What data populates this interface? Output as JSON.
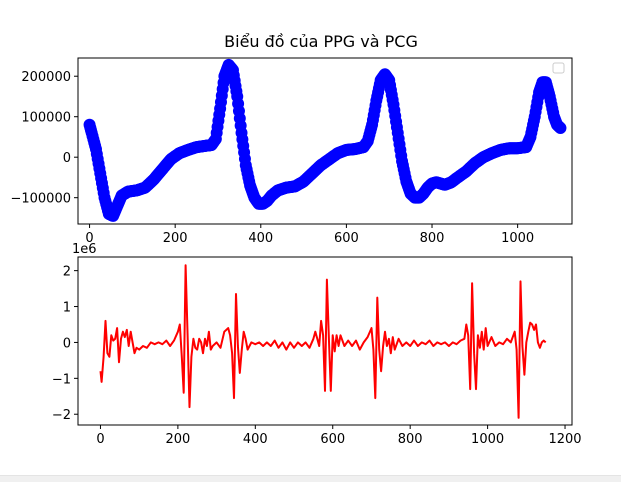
{
  "figure_title": "Biểu đồ của PPG và PCG",
  "chart_data": [
    {
      "type": "scatter",
      "title": "Biểu đồ của PPG và PCG",
      "color": "#0000ff",
      "xlim": [
        -27,
        1127
      ],
      "ylim": [
        -165000,
        245000
      ],
      "xticks": [
        0,
        200,
        400,
        600,
        800,
        1000
      ],
      "yticks": [
        -100000,
        0,
        100000,
        200000
      ],
      "legend": "top-right (empty)",
      "grid": false,
      "points": [
        [
          0,
          80000
        ],
        [
          5,
          60000
        ],
        [
          15,
          20000
        ],
        [
          25,
          -40000
        ],
        [
          35,
          -100000
        ],
        [
          45,
          -140000
        ],
        [
          55,
          -145000
        ],
        [
          65,
          -120000
        ],
        [
          75,
          -95000
        ],
        [
          90,
          -85000
        ],
        [
          110,
          -82000
        ],
        [
          130,
          -75000
        ],
        [
          150,
          -55000
        ],
        [
          170,
          -30000
        ],
        [
          190,
          -5000
        ],
        [
          210,
          10000
        ],
        [
          230,
          18000
        ],
        [
          250,
          25000
        ],
        [
          270,
          28000
        ],
        [
          285,
          30000
        ],
        [
          295,
          45000
        ],
        [
          305,
          120000
        ],
        [
          315,
          200000
        ],
        [
          325,
          228000
        ],
        [
          335,
          215000
        ],
        [
          345,
          150000
        ],
        [
          355,
          60000
        ],
        [
          365,
          -20000
        ],
        [
          375,
          -70000
        ],
        [
          385,
          -100000
        ],
        [
          395,
          -115000
        ],
        [
          405,
          -115000
        ],
        [
          415,
          -108000
        ],
        [
          425,
          -95000
        ],
        [
          440,
          -82000
        ],
        [
          460,
          -75000
        ],
        [
          480,
          -72000
        ],
        [
          500,
          -60000
        ],
        [
          520,
          -40000
        ],
        [
          540,
          -20000
        ],
        [
          560,
          -5000
        ],
        [
          580,
          10000
        ],
        [
          600,
          18000
        ],
        [
          620,
          20000
        ],
        [
          640,
          25000
        ],
        [
          650,
          40000
        ],
        [
          660,
          80000
        ],
        [
          670,
          140000
        ],
        [
          680,
          190000
        ],
        [
          690,
          205000
        ],
        [
          700,
          190000
        ],
        [
          710,
          130000
        ],
        [
          720,
          60000
        ],
        [
          730,
          -10000
        ],
        [
          740,
          -60000
        ],
        [
          750,
          -90000
        ],
        [
          760,
          -100000
        ],
        [
          770,
          -100000
        ],
        [
          780,
          -90000
        ],
        [
          790,
          -75000
        ],
        [
          800,
          -65000
        ],
        [
          810,
          -62000
        ],
        [
          820,
          -65000
        ],
        [
          830,
          -68000
        ],
        [
          845,
          -62000
        ],
        [
          860,
          -50000
        ],
        [
          880,
          -35000
        ],
        [
          900,
          -15000
        ],
        [
          920,
          0
        ],
        [
          940,
          10000
        ],
        [
          960,
          18000
        ],
        [
          980,
          22000
        ],
        [
          1000,
          22000
        ],
        [
          1020,
          25000
        ],
        [
          1030,
          50000
        ],
        [
          1040,
          100000
        ],
        [
          1050,
          160000
        ],
        [
          1058,
          185000
        ],
        [
          1066,
          185000
        ],
        [
          1075,
          150000
        ],
        [
          1085,
          100000
        ],
        [
          1092,
          80000
        ],
        [
          1100,
          72000
        ]
      ]
    },
    {
      "type": "line",
      "color": "#ff0000",
      "scale_label": "1e6",
      "xlim": [
        -58,
        1218
      ],
      "ylim": [
        -2.3,
        2.38
      ],
      "xticks": [
        0,
        200,
        400,
        600,
        800,
        1000,
        1200
      ],
      "yticks": [
        -2,
        -1,
        0,
        1,
        2
      ],
      "grid": false,
      "points": [
        [
          0,
          -0.8
        ],
        [
          3,
          -1.1
        ],
        [
          8,
          -0.4
        ],
        [
          13,
          0.6
        ],
        [
          18,
          -0.3
        ],
        [
          23,
          -0.4
        ],
        [
          28,
          0.2
        ],
        [
          33,
          0.05
        ],
        [
          38,
          0.1
        ],
        [
          43,
          0.4
        ],
        [
          48,
          -0.55
        ],
        [
          53,
          0.1
        ],
        [
          58,
          0.3
        ],
        [
          63,
          0.15
        ],
        [
          68,
          0.35
        ],
        [
          73,
          -0.1
        ],
        [
          78,
          0.3
        ],
        [
          83,
          0.0
        ],
        [
          88,
          -0.3
        ],
        [
          93,
          -0.15
        ],
        [
          100,
          -0.2
        ],
        [
          110,
          -0.1
        ],
        [
          120,
          -0.15
        ],
        [
          130,
          0.0
        ],
        [
          140,
          -0.05
        ],
        [
          150,
          0.0
        ],
        [
          160,
          -0.05
        ],
        [
          170,
          0.05
        ],
        [
          180,
          -0.1
        ],
        [
          190,
          0.05
        ],
        [
          200,
          0.3
        ],
        [
          205,
          0.5
        ],
        [
          210,
          -0.4
        ],
        [
          215,
          -1.4
        ],
        [
          220,
          2.15
        ],
        [
          225,
          0.2
        ],
        [
          230,
          -1.8
        ],
        [
          235,
          -0.4
        ],
        [
          240,
          0.1
        ],
        [
          245,
          -0.15
        ],
        [
          250,
          -0.2
        ],
        [
          255,
          0.1
        ],
        [
          260,
          0.0
        ],
        [
          265,
          -0.3
        ],
        [
          270,
          0.1
        ],
        [
          275,
          -0.1
        ],
        [
          280,
          0.3
        ],
        [
          285,
          -0.2
        ],
        [
          290,
          -0.1
        ],
        [
          300,
          0.0
        ],
        [
          310,
          -0.15
        ],
        [
          320,
          0.3
        ],
        [
          330,
          0.4
        ],
        [
          335,
          0.2
        ],
        [
          340,
          -0.3
        ],
        [
          345,
          -1.55
        ],
        [
          350,
          1.35
        ],
        [
          355,
          -0.1
        ],
        [
          360,
          -0.85
        ],
        [
          365,
          -0.2
        ],
        [
          370,
          0.3
        ],
        [
          375,
          0.1
        ],
        [
          380,
          -0.2
        ],
        [
          390,
          0.0
        ],
        [
          400,
          -0.05
        ],
        [
          410,
          0.0
        ],
        [
          420,
          -0.1
        ],
        [
          430,
          0.0
        ],
        [
          440,
          -0.1
        ],
        [
          450,
          0.05
        ],
        [
          460,
          -0.15
        ],
        [
          470,
          0.0
        ],
        [
          480,
          -0.2
        ],
        [
          490,
          0.0
        ],
        [
          500,
          -0.15
        ],
        [
          510,
          0.0
        ],
        [
          520,
          -0.1
        ],
        [
          530,
          0.0
        ],
        [
          540,
          -0.15
        ],
        [
          550,
          0.1
        ],
        [
          555,
          0.3
        ],
        [
          560,
          0.1
        ],
        [
          565,
          -0.1
        ],
        [
          570,
          0.6
        ],
        [
          575,
          0.2
        ],
        [
          580,
          -1.35
        ],
        [
          585,
          1.75
        ],
        [
          590,
          0.1
        ],
        [
          595,
          -1.35
        ],
        [
          600,
          0.2
        ],
        [
          605,
          -0.25
        ],
        [
          610,
          0.2
        ],
        [
          615,
          -0.1
        ],
        [
          620,
          0.2
        ],
        [
          630,
          -0.1
        ],
        [
          640,
          0.05
        ],
        [
          650,
          -0.1
        ],
        [
          660,
          0.05
        ],
        [
          670,
          -0.2
        ],
        [
          680,
          0.0
        ],
        [
          690,
          0.15
        ],
        [
          700,
          0.4
        ],
        [
          705,
          -0.2
        ],
        [
          710,
          -1.55
        ],
        [
          715,
          1.25
        ],
        [
          720,
          -0.2
        ],
        [
          725,
          -0.8
        ],
        [
          730,
          -0.1
        ],
        [
          735,
          0.3
        ],
        [
          740,
          -0.1
        ],
        [
          745,
          0.1
        ],
        [
          750,
          -0.3
        ],
        [
          755,
          0.15
        ],
        [
          760,
          -0.2
        ],
        [
          770,
          0.1
        ],
        [
          780,
          -0.1
        ],
        [
          790,
          0.0
        ],
        [
          800,
          -0.1
        ],
        [
          810,
          0.05
        ],
        [
          820,
          -0.1
        ],
        [
          830,
          0.0
        ],
        [
          840,
          -0.05
        ],
        [
          850,
          0.05
        ],
        [
          860,
          -0.1
        ],
        [
          870,
          0.0
        ],
        [
          880,
          -0.05
        ],
        [
          890,
          0.0
        ],
        [
          900,
          -0.1
        ],
        [
          910,
          0.0
        ],
        [
          920,
          -0.05
        ],
        [
          930,
          0.05
        ],
        [
          940,
          0.1
        ],
        [
          945,
          0.5
        ],
        [
          950,
          0.2
        ],
        [
          955,
          -1.3
        ],
        [
          960,
          1.65
        ],
        [
          965,
          -0.3
        ],
        [
          970,
          -1.3
        ],
        [
          975,
          0.2
        ],
        [
          980,
          -0.15
        ],
        [
          985,
          0.3
        ],
        [
          990,
          -0.2
        ],
        [
          995,
          0.4
        ],
        [
          1000,
          -0.1
        ],
        [
          1010,
          0.15
        ],
        [
          1020,
          -0.1
        ],
        [
          1030,
          0.0
        ],
        [
          1040,
          -0.05
        ],
        [
          1050,
          0.1
        ],
        [
          1060,
          0.0
        ],
        [
          1070,
          0.3
        ],
        [
          1075,
          -0.2
        ],
        [
          1080,
          -2.1
        ],
        [
          1085,
          1.7
        ],
        [
          1090,
          -0.1
        ],
        [
          1095,
          -0.9
        ],
        [
          1100,
          0.0
        ],
        [
          1105,
          0.3
        ],
        [
          1110,
          0.55
        ],
        [
          1115,
          0.5
        ],
        [
          1120,
          0.35
        ],
        [
          1125,
          0.5
        ],
        [
          1130,
          0.0
        ],
        [
          1135,
          -0.15
        ],
        [
          1140,
          0.0
        ],
        [
          1145,
          0.05
        ],
        [
          1150,
          0.0
        ]
      ]
    }
  ]
}
